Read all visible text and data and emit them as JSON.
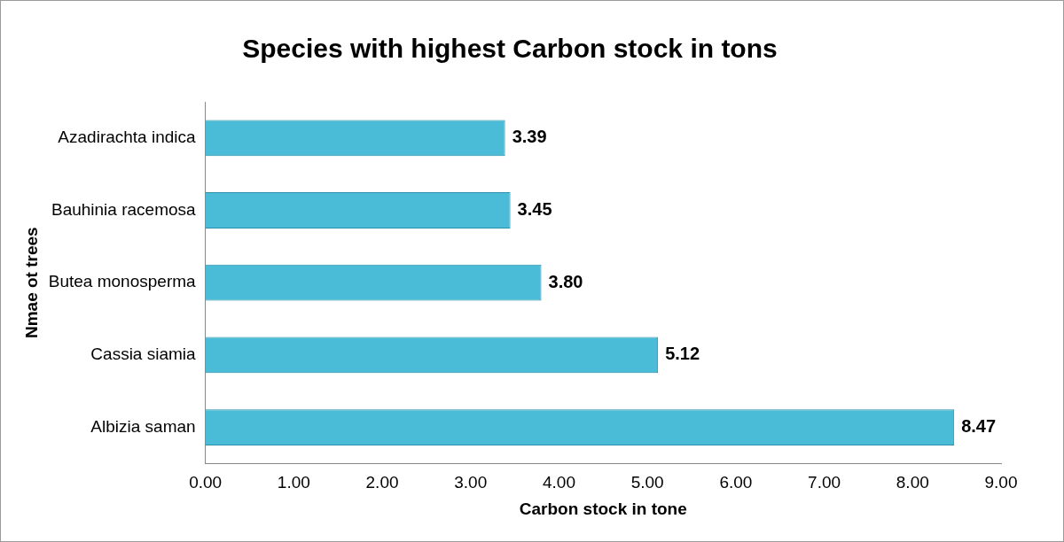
{
  "chart_data": {
    "type": "bar",
    "orientation": "horizontal",
    "title": "Species with highest Carbon stock in tons",
    "xlabel": "Carbon stock in tone",
    "ylabel": "Nmae ot trees",
    "categories": [
      "Azadirachta indica",
      "Bauhinia racemosa",
      "Butea monosperma",
      "Cassia siamia",
      "Albizia saman"
    ],
    "values": [
      3.39,
      3.45,
      3.8,
      5.12,
      8.47
    ],
    "value_labels": [
      "3.39",
      "3.45",
      "3.80",
      "5.12",
      "8.47"
    ],
    "color": "#4bbcd8",
    "xlim": [
      0,
      9
    ],
    "xticks": [
      {
        "value": 0,
        "label": "0.00"
      },
      {
        "value": 1,
        "label": "1.00"
      },
      {
        "value": 2,
        "label": "2.00"
      },
      {
        "value": 3,
        "label": "3.00"
      },
      {
        "value": 4,
        "label": "4.00"
      },
      {
        "value": 5,
        "label": "5.00"
      },
      {
        "value": 6,
        "label": "6.00"
      },
      {
        "value": 7,
        "label": "7.00"
      },
      {
        "value": 8,
        "label": "8.00"
      },
      {
        "value": 9,
        "label": "9.00"
      }
    ],
    "grid": false,
    "legend": false
  }
}
